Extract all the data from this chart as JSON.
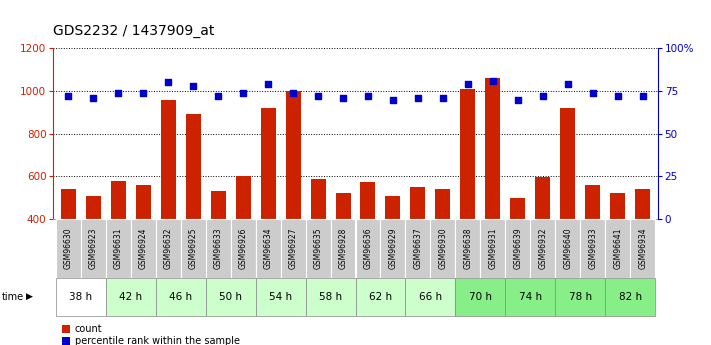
{
  "title": "GDS2232 / 1437909_at",
  "samples": [
    "GSM96630",
    "GSM96923",
    "GSM96631",
    "GSM96924",
    "GSM96632",
    "GSM96925",
    "GSM96633",
    "GSM96926",
    "GSM96634",
    "GSM96927",
    "GSM96635",
    "GSM96928",
    "GSM96636",
    "GSM96929",
    "GSM96637",
    "GSM96930",
    "GSM96638",
    "GSM96931",
    "GSM96639",
    "GSM96932",
    "GSM96640",
    "GSM96933",
    "GSM96641",
    "GSM96934"
  ],
  "counts": [
    540,
    510,
    580,
    560,
    960,
    890,
    530,
    600,
    920,
    1000,
    590,
    520,
    575,
    510,
    550,
    540,
    1010,
    1060,
    500,
    595,
    920,
    560,
    520,
    540
  ],
  "percentiles": [
    72,
    71,
    74,
    74,
    80,
    78,
    72,
    74,
    79,
    74,
    72,
    71,
    72,
    70,
    71,
    71,
    79,
    81,
    70,
    72,
    79,
    74,
    72,
    72
  ],
  "time_groups": [
    {
      "label": "38 h",
      "start": 0,
      "end": 2,
      "color": "#ffffff"
    },
    {
      "label": "42 h",
      "start": 2,
      "end": 4,
      "color": "#ccffcc"
    },
    {
      "label": "46 h",
      "start": 4,
      "end": 6,
      "color": "#ccffcc"
    },
    {
      "label": "50 h",
      "start": 6,
      "end": 8,
      "color": "#ccffcc"
    },
    {
      "label": "54 h",
      "start": 8,
      "end": 10,
      "color": "#ccffcc"
    },
    {
      "label": "58 h",
      "start": 10,
      "end": 12,
      "color": "#ccffcc"
    },
    {
      "label": "62 h",
      "start": 12,
      "end": 14,
      "color": "#ccffcc"
    },
    {
      "label": "66 h",
      "start": 14,
      "end": 16,
      "color": "#ccffcc"
    },
    {
      "label": "70 h",
      "start": 16,
      "end": 18,
      "color": "#88ee88"
    },
    {
      "label": "74 h",
      "start": 18,
      "end": 20,
      "color": "#88ee88"
    },
    {
      "label": "78 h",
      "start": 20,
      "end": 22,
      "color": "#88ee88"
    },
    {
      "label": "82 h",
      "start": 22,
      "end": 24,
      "color": "#88ee88"
    }
  ],
  "ylim_left": [
    400,
    1200
  ],
  "ylim_right": [
    0,
    100
  ],
  "yticks_left": [
    400,
    600,
    800,
    1000,
    1200
  ],
  "yticks_right": [
    0,
    25,
    50,
    75,
    100
  ],
  "bar_color": "#cc2200",
  "dot_color": "#0000cc",
  "bg_color": "#ffffff",
  "title_fontsize": 10,
  "axis_label_color_left": "#cc2200",
  "axis_label_color_right": "#0000cc",
  "legend_items": [
    "count",
    "percentile rank within the sample"
  ],
  "legend_colors": [
    "#cc2200",
    "#0000cc"
  ],
  "sample_cell_color": "#cccccc",
  "sample_border_color": "#aaaaaa"
}
